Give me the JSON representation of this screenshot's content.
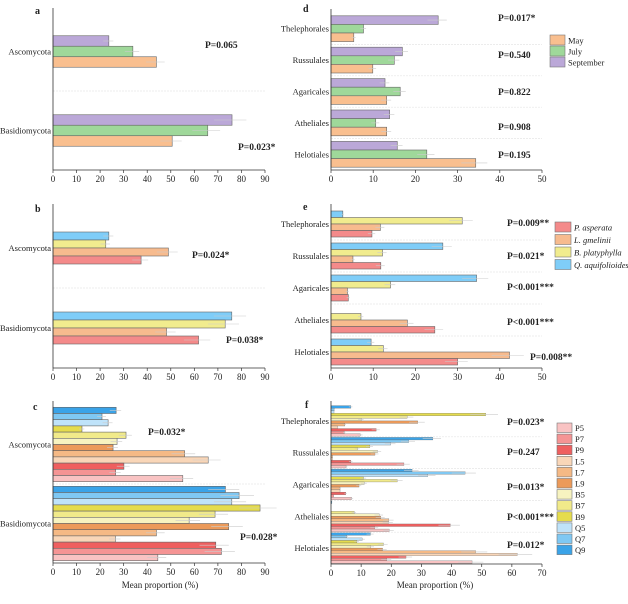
{
  "chart_data": [
    {
      "panel": "a",
      "type": "bar",
      "orientation": "horizontal",
      "categories": [
        "Ascomycota",
        "Basidiomycota"
      ],
      "xlim": [
        0,
        90
      ],
      "ticks": [
        0,
        10,
        20,
        30,
        40,
        50,
        60,
        70,
        80,
        90
      ],
      "xlabel": "",
      "series": [
        {
          "name": "May",
          "color": "#f9bf8f",
          "values": [
            43.9,
            50.6
          ]
        },
        {
          "name": "July",
          "color": "#9fd89a",
          "values": [
            33.9,
            65.7
          ]
        },
        {
          "name": "September",
          "color": "#bba8d8",
          "values": [
            23.7,
            76.0
          ]
        }
      ],
      "p_values": [
        "P=0.065",
        "P=0.023*"
      ],
      "legend": false
    },
    {
      "panel": "b",
      "type": "bar",
      "orientation": "horizontal",
      "categories": [
        "Ascomycota",
        "Basidiomycota"
      ],
      "xlim": [
        0,
        90
      ],
      "ticks": [
        0,
        10,
        20,
        30,
        40,
        50,
        60,
        70,
        80,
        90
      ],
      "xlabel": "",
      "series": [
        {
          "name": "P. asperata",
          "color": "#f48a8a",
          "values": [
            37.4,
            61.8
          ]
        },
        {
          "name": "L. gmelinii",
          "color": "#f7bb8e",
          "values": [
            49.0,
            48.2
          ]
        },
        {
          "name": "B. platyphylla",
          "color": "#f1ec8e",
          "values": [
            22.4,
            73.1
          ]
        },
        {
          "name": "Q. aquifolioides",
          "color": "#7fcdf8",
          "values": [
            23.7,
            75.9
          ]
        }
      ],
      "p_values": [
        "P=0.024*",
        "P=0.038*"
      ],
      "legend": false
    },
    {
      "panel": "c",
      "type": "bar",
      "orientation": "horizontal",
      "categories": [
        "Ascomycota",
        "Basidiomycota"
      ],
      "xlim": [
        0,
        90
      ],
      "ticks": [
        0,
        10,
        20,
        30,
        40,
        50,
        60,
        70,
        80,
        90
      ],
      "xlabel": "Mean proportion (%)",
      "series": [
        {
          "name": "P5",
          "color": "#f9c3c3",
          "values": [
            55.1,
            44.5
          ]
        },
        {
          "name": "P7",
          "color": "#f59494",
          "values": [
            26.6,
            71.5
          ]
        },
        {
          "name": "P9",
          "color": "#ef5f5f",
          "values": [
            30.1,
            69.1
          ]
        },
        {
          "name": "L5",
          "color": "#f9d6b8",
          "values": [
            65.9,
            26.5
          ]
        },
        {
          "name": "L7",
          "color": "#f5b985",
          "values": [
            55.9,
            43.9
          ]
        },
        {
          "name": "L9",
          "color": "#ec9a5a",
          "values": [
            25.5,
            74.6
          ]
        },
        {
          "name": "B5",
          "color": "#f7f3c0",
          "values": [
            27.2,
            57.8
          ]
        },
        {
          "name": "B7",
          "color": "#f1ea8a",
          "values": [
            31.0,
            68.8
          ]
        },
        {
          "name": "B9",
          "color": "#e5dc4d",
          "values": [
            12.3,
            87.9
          ]
        },
        {
          "name": "Q5",
          "color": "#bfe3fa",
          "values": [
            23.4,
            75.9
          ]
        },
        {
          "name": "Q7",
          "color": "#7fc8f3",
          "values": [
            20.8,
            79.0
          ]
        },
        {
          "name": "Q9",
          "color": "#3aa3e8",
          "values": [
            26.8,
            73.2
          ]
        }
      ],
      "p_values": [
        "P=0.032*",
        "P=0.028*"
      ],
      "legend": false
    },
    {
      "panel": "d",
      "type": "bar",
      "orientation": "horizontal",
      "categories": [
        "Thelephorales",
        "Russulales",
        "Agaricales",
        "Atheliales",
        "Helotiales"
      ],
      "xlim": [
        0,
        50
      ],
      "ticks": [
        0,
        10,
        20,
        30,
        40,
        50
      ],
      "xlabel": "",
      "series": [
        {
          "name": "May",
          "color": "#f9bf8f",
          "values": [
            5.4,
            9.9,
            13.2,
            13.2,
            34.3
          ]
        },
        {
          "name": "July",
          "color": "#9fd89a",
          "values": [
            7.7,
            15.0,
            16.4,
            10.6,
            22.7
          ]
        },
        {
          "name": "September",
          "color": "#bba8d8",
          "values": [
            25.4,
            16.9,
            12.8,
            13.9,
            15.7
          ]
        }
      ],
      "p_values": [
        "P=0.017*",
        "P=0.540",
        "P=0.822",
        "P=0.908",
        "P=0.195"
      ],
      "legend": true
    },
    {
      "panel": "e",
      "type": "bar",
      "orientation": "horizontal",
      "categories": [
        "Thelephorales",
        "Russulales",
        "Agaricales",
        "Atheliales",
        "Helotiales"
      ],
      "xlim": [
        0,
        50
      ],
      "ticks": [
        0,
        10,
        20,
        30,
        40,
        50
      ],
      "xlabel": "",
      "series": [
        {
          "name": "P. asperata",
          "color": "#f48a8a",
          "values": [
            9.7,
            11.8,
            4.1,
            24.6,
            30.0
          ]
        },
        {
          "name": "L. gmelinii",
          "color": "#f7bb8e",
          "values": [
            11.7,
            5.2,
            3.9,
            18.1,
            42.3
          ]
        },
        {
          "name": "B. platyphylla",
          "color": "#f1ec8e",
          "values": [
            31.1,
            12.2,
            14.1,
            7.1,
            12.4
          ]
        },
        {
          "name": "Q. aquifolioides",
          "color": "#7fcdf8",
          "values": [
            2.8,
            26.5,
            34.5,
            0,
            9.5
          ]
        }
      ],
      "p_values": [
        "P=0.009**",
        "P=0.021*",
        "P<0.001***",
        "P<0.001***",
        "P=0.008**"
      ],
      "legend": true
    },
    {
      "panel": "f",
      "type": "bar",
      "orientation": "horizontal",
      "categories": [
        "Thelephorales",
        "Russulales",
        "Agaricales",
        "Atheliales",
        "Helotiales"
      ],
      "xlim": [
        0,
        70
      ],
      "ticks": [
        0,
        10,
        20,
        30,
        40,
        50,
        60,
        70
      ],
      "xlabel": "Mean proportion (%)",
      "series": [
        {
          "name": "P5",
          "color": "#f9c3c3",
          "values": [
            9.7,
            5.0,
            6.8,
            19.3,
            46.8
          ]
        },
        {
          "name": "P7",
          "color": "#f59494",
          "values": [
            4.4,
            24.2,
            0.9,
            14.5,
            18.5
          ]
        },
        {
          "name": "P9",
          "color": "#ef5f5f",
          "values": [
            15.0,
            6.6,
            4.9,
            39.6,
            24.9
          ]
        },
        {
          "name": "L5",
          "color": "#f9d6b8",
          "values": [
            2.2,
            0.5,
            3.0,
            19.0,
            61.8
          ]
        },
        {
          "name": "L7",
          "color": "#f5b985",
          "values": [
            4.6,
            0.5,
            3.0,
            19.2,
            48.0
          ]
        },
        {
          "name": "L9",
          "color": "#ec9a5a",
          "values": [
            28.8,
            14.6,
            9.3,
            16.5,
            17.1
          ]
        },
        {
          "name": "B5",
          "color": "#f7f3c0",
          "values": [
            10.0,
            15.4,
            11.0,
            16.0,
            13.2
          ]
        },
        {
          "name": "B7",
          "color": "#f1ea8a",
          "values": [
            25.3,
            8.8,
            22.0,
            7.7,
            17.4
          ]
        },
        {
          "name": "B9",
          "color": "#e5dc4d",
          "values": [
            51.3,
            12.9,
            10.8,
            0,
            8.6
          ]
        },
        {
          "name": "Q5",
          "color": "#bfe3fa",
          "values": [
            1.0,
            19.8,
            32.1,
            0,
            10.4
          ]
        },
        {
          "name": "Q7",
          "color": "#7fc8f3",
          "values": [
            1.1,
            25.8,
            44.5,
            0,
            5.2
          ]
        },
        {
          "name": "Q9",
          "color": "#3aa3e8",
          "values": [
            6.6,
            33.8,
            26.9,
            0.3,
            13.1
          ]
        }
      ],
      "p_values": [
        "P=0.023*",
        "P=0.247",
        "P=0.013*",
        "P<0.001***",
        "P=0.012*"
      ],
      "legend": true
    }
  ]
}
